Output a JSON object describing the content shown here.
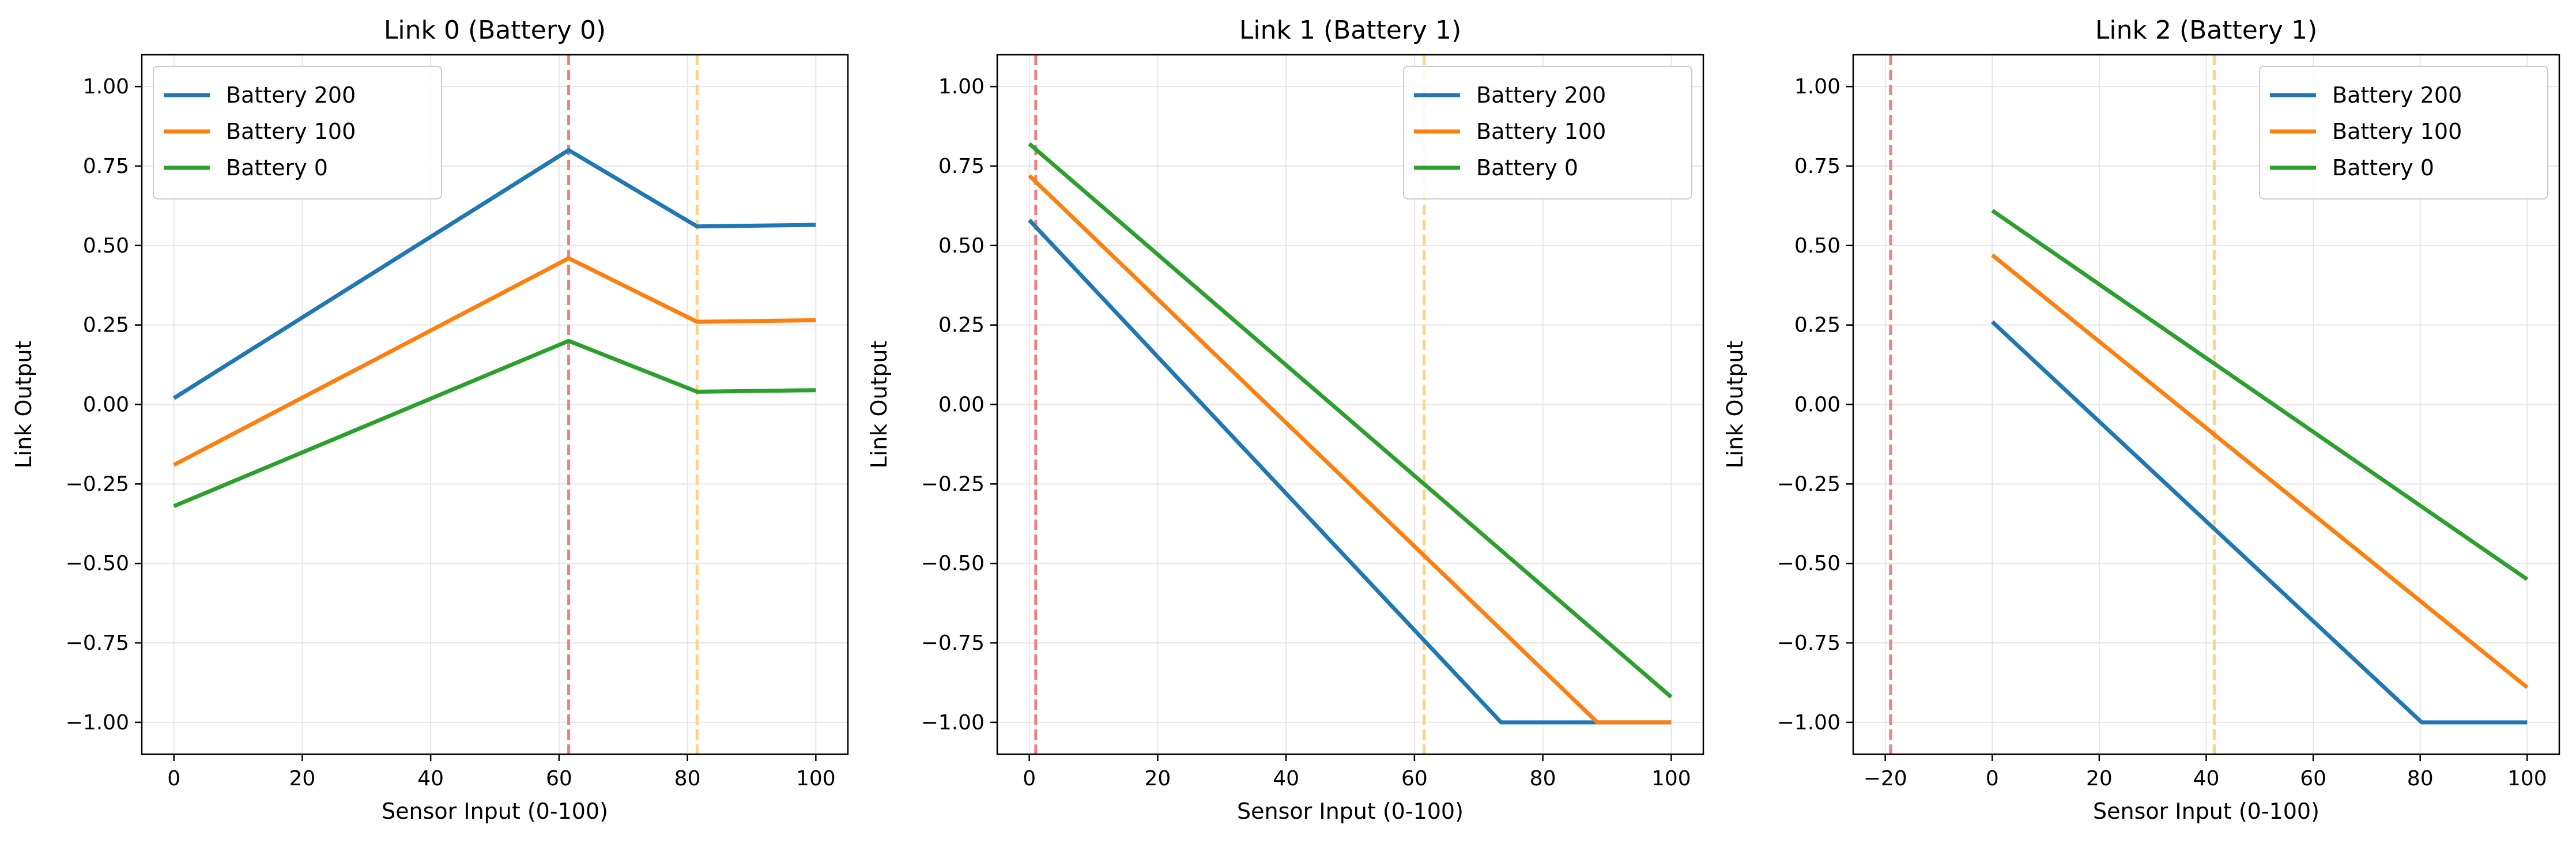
{
  "chart_data": [
    {
      "type": "line",
      "title": "Link 0 (Battery 0)",
      "xlabel": "Sensor Input (0-100)",
      "ylabel": "Link Output",
      "xlim": [
        -5,
        105
      ],
      "ylim": [
        -1.1,
        1.1
      ],
      "xticks": [
        0,
        20,
        40,
        60,
        80,
        100
      ],
      "yticks": [
        -1.0,
        -0.75,
        -0.5,
        -0.25,
        0.0,
        0.25,
        0.5,
        0.75,
        1.0
      ],
      "grid": true,
      "legend_position": "upper-left",
      "series": [
        {
          "name": "Battery 200",
          "color": "#1f77b4",
          "x": [
            0,
            61.5,
            81.5,
            100
          ],
          "y": [
            0.02,
            0.8,
            0.56,
            0.565
          ]
        },
        {
          "name": "Battery 100",
          "color": "#ff7f0e",
          "x": [
            0,
            61.5,
            81.5,
            100
          ],
          "y": [
            -0.19,
            0.46,
            0.26,
            0.265
          ]
        },
        {
          "name": "Battery 0",
          "color": "#2ca02c",
          "x": [
            0,
            61.5,
            81.5,
            100
          ],
          "y": [
            -0.32,
            0.2,
            0.04,
            0.045
          ]
        }
      ],
      "vlines": [
        {
          "x": 61.5,
          "color": "#f08080"
        },
        {
          "x": 81.5,
          "color": "#ffd27f"
        }
      ]
    },
    {
      "type": "line",
      "title": "Link 1 (Battery 1)",
      "xlabel": "Sensor Input (0-100)",
      "ylabel": "Link Output",
      "xlim": [
        -5,
        105
      ],
      "ylim": [
        -1.1,
        1.1
      ],
      "xticks": [
        0,
        20,
        40,
        60,
        80,
        100
      ],
      "yticks": [
        -1.0,
        -0.75,
        -0.5,
        -0.25,
        0.0,
        0.25,
        0.5,
        0.75,
        1.0
      ],
      "grid": true,
      "legend_position": "upper-right",
      "series": [
        {
          "name": "Battery 200",
          "color": "#1f77b4",
          "x": [
            0,
            73.5,
            100
          ],
          "y": [
            0.58,
            -1.0,
            -1.0
          ]
        },
        {
          "name": "Battery 100",
          "color": "#ff7f0e",
          "x": [
            0,
            88.5,
            100
          ],
          "y": [
            0.72,
            -1.0,
            -1.0
          ]
        },
        {
          "name": "Battery 0",
          "color": "#2ca02c",
          "x": [
            0,
            100
          ],
          "y": [
            0.82,
            -0.92
          ]
        }
      ],
      "vlines": [
        {
          "x": 1,
          "color": "#f08080"
        },
        {
          "x": 61.5,
          "color": "#ffd27f"
        }
      ]
    },
    {
      "type": "line",
      "title": "Link 2 (Battery 1)",
      "xlabel": "Sensor Input (0-100)",
      "ylabel": "Link Output",
      "xlim": [
        -26,
        106
      ],
      "ylim": [
        -1.1,
        1.1
      ],
      "xticks": [
        -20,
        0,
        20,
        40,
        60,
        80,
        100
      ],
      "yticks": [
        -1.0,
        -0.75,
        -0.5,
        -0.25,
        0.0,
        0.25,
        0.5,
        0.75,
        1.0
      ],
      "grid": true,
      "legend_position": "upper-right",
      "series": [
        {
          "name": "Battery 200",
          "color": "#1f77b4",
          "x": [
            0,
            80.3,
            100
          ],
          "y": [
            0.26,
            -1.0,
            -1.0
          ]
        },
        {
          "name": "Battery 100",
          "color": "#ff7f0e",
          "x": [
            0,
            100
          ],
          "y": [
            0.47,
            -0.89
          ]
        },
        {
          "name": "Battery 0",
          "color": "#2ca02c",
          "x": [
            0,
            100
          ],
          "y": [
            0.61,
            -0.55
          ]
        }
      ],
      "vlines": [
        {
          "x": -19,
          "color": "#f08080"
        },
        {
          "x": 41.5,
          "color": "#ffd27f"
        }
      ]
    }
  ]
}
